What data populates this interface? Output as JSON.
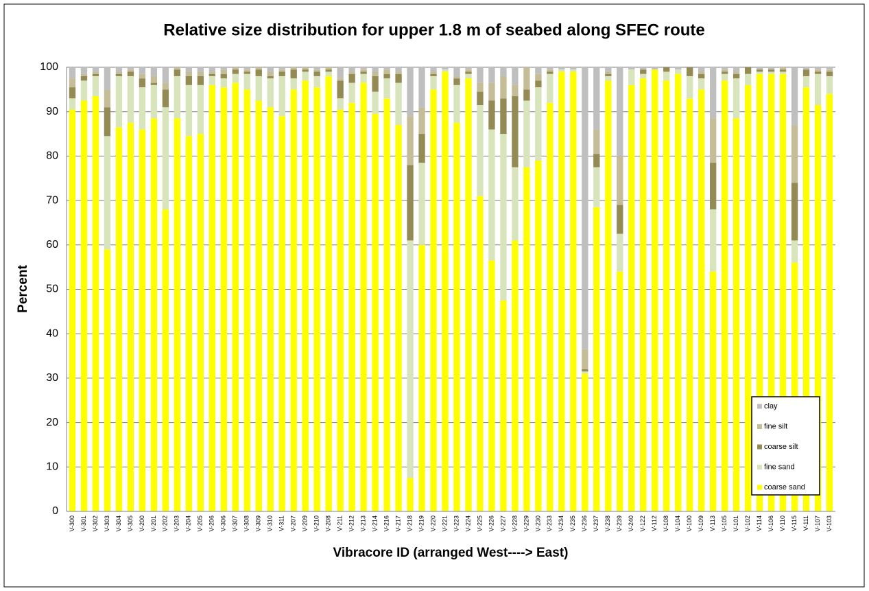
{
  "chart_data": {
    "type": "stacked_bar",
    "title": "Relative size distribution for upper 1.8 m of seabed along SFEC route",
    "y_label": "Percent",
    "x_label": "Vibracore ID (arranged West----> East)",
    "categories": [
      "V-300",
      "V-301",
      "V-302",
      "V-303",
      "V-304",
      "V-305",
      "V-200",
      "V-201",
      "V-202",
      "V-203",
      "V-204",
      "V-205",
      "V-206",
      "V-306",
      "V-307",
      "V-308",
      "V-309",
      "V-310",
      "V-311",
      "V-207",
      "V-209",
      "V-210",
      "V-208",
      "V-211",
      "V-212",
      "V-213",
      "V-214",
      "V-216",
      "V-217",
      "V-218",
      "V-219",
      "V-220",
      "V-221",
      "V-223",
      "V-224",
      "V-225",
      "V-226",
      "V-227",
      "V-228",
      "V-229",
      "V-230",
      "V-233",
      "V-234",
      "V-235",
      "V-236",
      "V-237",
      "V-238",
      "V-239",
      "V-240",
      "V-122",
      "V-112",
      "V-108",
      "V-104",
      "V-100",
      "V-109",
      "V-113",
      "V-105",
      "V-101",
      "V-102",
      "V-114",
      "V-106",
      "V-110",
      "V-115",
      "V-111",
      "V-107",
      "V-103"
    ],
    "series": [
      {
        "name": "coarse sand",
        "color": "#ffff00",
        "values": [
          90.5,
          92.5,
          93.5,
          59,
          86.5,
          87.5,
          86,
          88.5,
          68,
          88.5,
          84.5,
          85,
          96,
          95.5,
          96.5,
          95,
          92.5,
          91,
          89,
          95,
          97,
          95.5,
          98,
          90.5,
          92,
          96.5,
          89.5,
          93,
          87,
          7.5,
          60,
          95,
          99,
          87.5,
          97.5,
          71,
          56.5,
          47.5,
          61,
          77.5,
          79,
          92,
          99,
          99,
          31,
          68.5,
          97,
          54,
          96,
          97.5,
          99.5,
          97,
          98.5,
          93,
          95,
          54,
          97,
          88.5,
          96,
          98.5,
          98.5,
          98.5,
          56,
          95.5,
          91.5,
          94
        ]
      },
      {
        "name": "fine sand",
        "color": "#d8e4bc",
        "values": [
          2.5,
          4.5,
          4.5,
          25.5,
          11.5,
          10.5,
          9.5,
          7.5,
          23,
          9.5,
          11.5,
          11,
          2,
          2,
          2,
          3.5,
          5.5,
          6.5,
          9,
          2.5,
          2,
          2.5,
          1,
          2.5,
          4.5,
          2,
          5,
          4.5,
          9.5,
          53.5,
          18.5,
          3,
          0.5,
          8.5,
          1,
          20.5,
          29.5,
          37.5,
          16.5,
          15,
          16.5,
          6.5,
          0.5,
          0.5,
          0.5,
          9,
          1,
          8.5,
          3.5,
          1,
          0,
          2,
          1,
          5,
          2.5,
          14,
          1.5,
          9,
          2.5,
          0.5,
          0.5,
          0.5,
          5,
          2.5,
          7,
          4
        ]
      },
      {
        "name": "coarse silt",
        "color": "#948a54",
        "values": [
          2.5,
          1,
          0.5,
          6.5,
          0.5,
          1,
          2,
          0.5,
          4,
          1.5,
          2,
          2,
          0.5,
          1,
          1,
          0.5,
          1.5,
          0.5,
          1,
          2,
          0.5,
          1,
          0.5,
          4,
          2,
          0.5,
          3.5,
          1,
          2,
          17,
          6.5,
          0.5,
          0,
          1.5,
          0.5,
          3,
          6.5,
          8,
          16,
          2.5,
          1.5,
          0.5,
          0,
          0,
          0.5,
          3,
          0.5,
          6.5,
          0,
          1,
          0,
          1,
          0,
          2,
          1,
          10.5,
          0.5,
          1,
          1.5,
          0.5,
          0.5,
          0.5,
          13,
          1.5,
          0.5,
          1
        ]
      },
      {
        "name": "fine silt",
        "color": "#c4bd97",
        "values": [
          2,
          0.5,
          0.5,
          4,
          0.5,
          0.5,
          1,
          1.5,
          1.5,
          0.5,
          1,
          1,
          0.5,
          1,
          0.5,
          0.5,
          0.5,
          1,
          0.5,
          0.5,
          0.5,
          0.5,
          0.5,
          0.5,
          0.5,
          0.5,
          1,
          1,
          0.5,
          11,
          6,
          0.5,
          0,
          0.5,
          0.5,
          2,
          4,
          5,
          2.5,
          5,
          1.5,
          0.5,
          0,
          0,
          4.5,
          5.5,
          0.5,
          11,
          0,
          0,
          0,
          0,
          0,
          0,
          0.5,
          10,
          0.5,
          0.5,
          0,
          0,
          0,
          0.5,
          13,
          0,
          0.5,
          0.5
        ]
      },
      {
        "name": "clay",
        "color": "#bfbfbf",
        "values": [
          2.5,
          1.5,
          1,
          5,
          1,
          0.5,
          1.5,
          2,
          3.5,
          0,
          1,
          1,
          1,
          0.5,
          0,
          0.5,
          0,
          1,
          0.5,
          0,
          0,
          0.5,
          0,
          2.5,
          1,
          0.5,
          1,
          0.5,
          1,
          11,
          9,
          1,
          0.5,
          2,
          0.5,
          3.5,
          3.5,
          2,
          4,
          0,
          1.5,
          0.5,
          0.5,
          0.5,
          63.5,
          14,
          1,
          20,
          0.5,
          0.5,
          0.5,
          0,
          0.5,
          0,
          1,
          11.5,
          0.5,
          1,
          0,
          0.5,
          0.5,
          0,
          13,
          0.5,
          0.5,
          0.5
        ]
      }
    ],
    "ylim": [
      0,
      100
    ],
    "yticks": [
      0,
      10,
      20,
      30,
      40,
      50,
      60,
      70,
      80,
      90,
      100
    ],
    "grid": true,
    "legend": "bottom-right"
  }
}
